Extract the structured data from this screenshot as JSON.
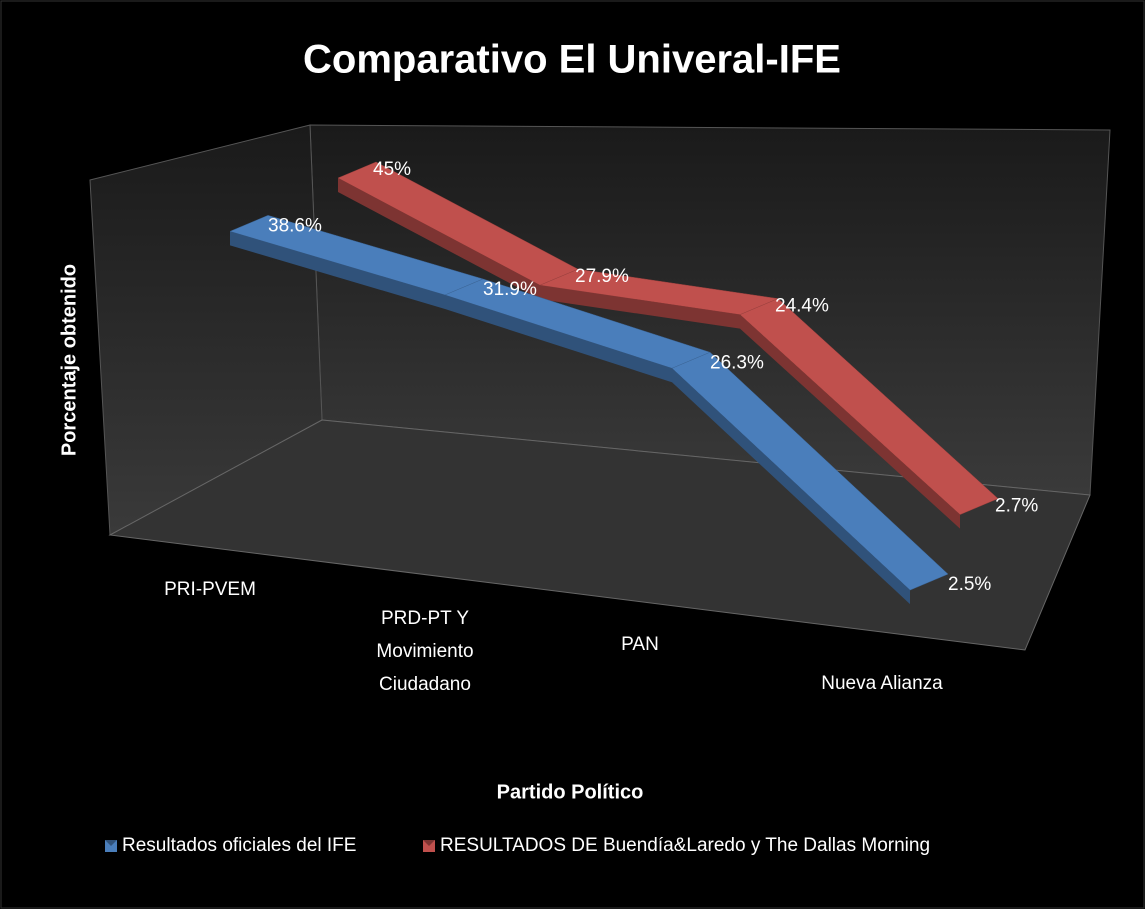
{
  "chart_data": {
    "type": "line3d",
    "title": "Comparativo  El Univeral-IFE",
    "x_label": "Partido Político",
    "y_label": "Porcentaje obtenido",
    "categories": [
      "PRI-PVEM",
      "PRD-PT Y Movimiento Ciudadano",
      "PAN",
      "Nueva Alianza"
    ],
    "series": [
      {
        "name": "Resultados oficiales del IFE",
        "color": "#4a7ebb",
        "values": [
          38.6,
          31.9,
          26.3,
          2.5
        ],
        "value_labels": [
          "38.6%",
          "31.9%",
          "26.3%",
          "2.5%"
        ]
      },
      {
        "name": "RESULTADOS DE Buendía&Laredo y The Dallas Morning",
        "color": "#c0504d",
        "values": [
          45,
          27.9,
          24.4,
          2.7
        ],
        "value_labels": [
          "45%",
          "27.9%",
          "24.4%",
          "2.7%"
        ]
      }
    ],
    "legend": "bottom"
  }
}
